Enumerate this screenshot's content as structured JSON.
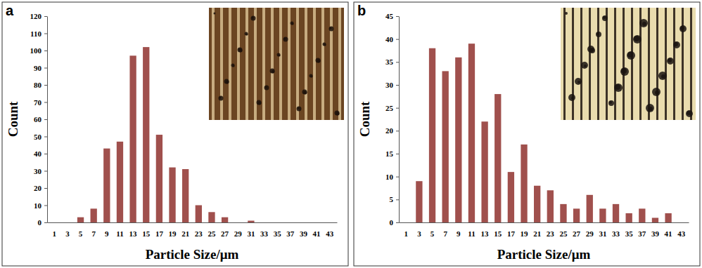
{
  "chart_data": [
    {
      "type": "bar",
      "panel": "a",
      "x_label": "Particle Size/μm",
      "y_label": "Count",
      "categories": [
        "1",
        "3",
        "5",
        "7",
        "9",
        "11",
        "13",
        "15",
        "17",
        "19",
        "21",
        "23",
        "25",
        "27",
        "29",
        "31",
        "33",
        "35",
        "37",
        "39",
        "41",
        "43"
      ],
      "values": [
        0,
        0,
        3,
        8,
        43,
        47,
        97,
        102,
        51,
        32,
        31,
        10,
        6,
        3,
        0,
        1,
        0,
        0,
        0,
        0,
        0,
        0
      ],
      "color": "#a0504d",
      "ylim": [
        0,
        120
      ],
      "yticks": [
        0,
        10,
        20,
        30,
        40,
        50,
        60,
        70,
        80,
        90,
        100,
        110,
        120
      ],
      "grid": false
    },
    {
      "type": "bar",
      "panel": "b",
      "x_label": "Particle Size/μm",
      "y_label": "Count",
      "categories": [
        "1",
        "3",
        "5",
        "7",
        "9",
        "11",
        "13",
        "15",
        "17",
        "19",
        "21",
        "23",
        "25",
        "27",
        "29",
        "31",
        "33",
        "35",
        "37",
        "39",
        "41",
        "43"
      ],
      "values": [
        0,
        9,
        38,
        33,
        36,
        39,
        22,
        28,
        11,
        17,
        8,
        7,
        4,
        3,
        6,
        3,
        4,
        2,
        3,
        1,
        2,
        0
      ],
      "color": "#a0504d",
      "ylim": [
        0,
        45
      ],
      "yticks": [
        0,
        5,
        10,
        15,
        20,
        25,
        30,
        35,
        40,
        45
      ],
      "grid": false
    }
  ]
}
